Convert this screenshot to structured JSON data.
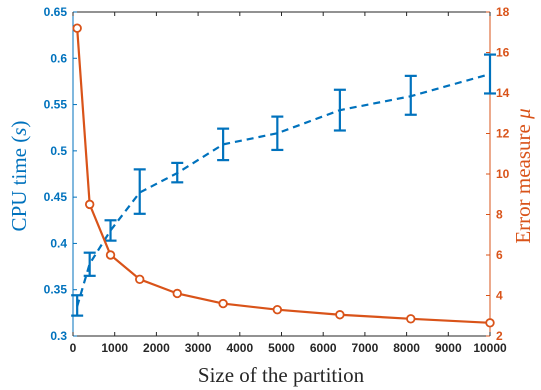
{
  "chart_data": {
    "type": "line",
    "title": "",
    "xlabel": "Size of the partition",
    "ylabel_left": "CPU time (s)",
    "ylabel_right": "Error measure μ",
    "xlim": [
      0,
      10000
    ],
    "ylim_left": [
      0.3,
      0.65
    ],
    "ylim_right": [
      2,
      18
    ],
    "x_ticks": [
      0,
      1000,
      2000,
      3000,
      4000,
      5000,
      6000,
      7000,
      8000,
      9000,
      10000
    ],
    "y_left_ticks": [
      0.3,
      0.35,
      0.4,
      0.45,
      0.5,
      0.55,
      0.6,
      0.65
    ],
    "y_right_ticks": [
      2,
      4,
      6,
      8,
      10,
      12,
      14,
      16,
      18
    ],
    "grid": false,
    "colors": {
      "left": "#0072BD",
      "right": "#D95319",
      "text": "#262626"
    },
    "series": [
      {
        "axis": "left",
        "style": "dashed-errorbar",
        "x": [
          100,
          400,
          900,
          1600,
          2500,
          3600,
          4900,
          6400,
          8100,
          10000
        ],
        "y": [
          0.332,
          0.378,
          0.414,
          0.455,
          0.476,
          0.507,
          0.519,
          0.544,
          0.559,
          0.583
        ],
        "err_low": [
          0.322,
          0.365,
          0.403,
          0.432,
          0.466,
          0.49,
          0.501,
          0.522,
          0.539,
          0.562
        ],
        "err_high": [
          0.344,
          0.39,
          0.425,
          0.48,
          0.487,
          0.524,
          0.537,
          0.566,
          0.581,
          0.604
        ]
      },
      {
        "axis": "right",
        "style": "solid-circle",
        "x": [
          100,
          400,
          900,
          1600,
          2500,
          3600,
          4900,
          6400,
          8100,
          10000
        ],
        "y": [
          17.2,
          8.5,
          6.0,
          4.8,
          4.1,
          3.6,
          3.3,
          3.05,
          2.85,
          2.65
        ]
      }
    ]
  }
}
